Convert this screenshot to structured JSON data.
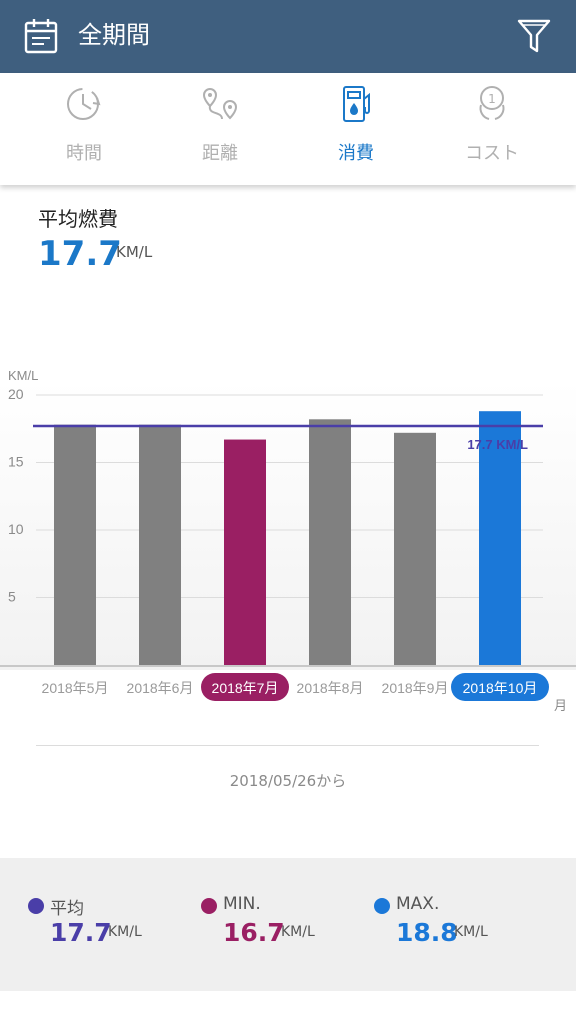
{
  "header": {
    "title": "全期間",
    "calendar_icon": "calendar-icon",
    "filter_icon": "filter-icon",
    "color": "#3f5f7f"
  },
  "tabs": [
    {
      "label": "時間",
      "icon": "clock-icon",
      "active": false
    },
    {
      "label": "距離",
      "icon": "route-icon",
      "active": false
    },
    {
      "label": "消費",
      "icon": "fuel-pump-icon",
      "active": true
    },
    {
      "label": "コスト",
      "icon": "coin-icon",
      "active": false
    }
  ],
  "summary": {
    "label": "平均燃費",
    "value": "17.7",
    "unit": "KM/L"
  },
  "chart_data": {
    "type": "bar",
    "ylabel": "KM/L",
    "xlabel": "月",
    "ylim": [
      0,
      20
    ],
    "yticks": [
      5,
      10,
      15,
      20
    ],
    "grid": true,
    "categories": [
      "2018年5月",
      "2018年6月",
      "2018年7月",
      "2018年8月",
      "2018年9月",
      "2018年10月"
    ],
    "values": [
      17.8,
      17.8,
      16.7,
      18.2,
      17.2,
      18.8
    ],
    "highlight": {
      "min_index": 2,
      "max_index": 5
    },
    "average": {
      "value": 17.7,
      "label": "17.7 KM/L"
    },
    "colors": {
      "bar": "#808080",
      "min": "#9a1f63",
      "max": "#1b78d8",
      "average": "#4a3ea8"
    }
  },
  "footer": {
    "since": "2018/05/26から"
  },
  "stats": [
    {
      "name": "平均",
      "value": "17.7",
      "unit": "KM/L",
      "color": "#4a3ea8"
    },
    {
      "name": "MIN.",
      "value": "16.7",
      "unit": "KM/L",
      "color": "#9a1f63"
    },
    {
      "name": "MAX.",
      "value": "18.8",
      "unit": "KM/L",
      "color": "#1b78d8"
    }
  ]
}
